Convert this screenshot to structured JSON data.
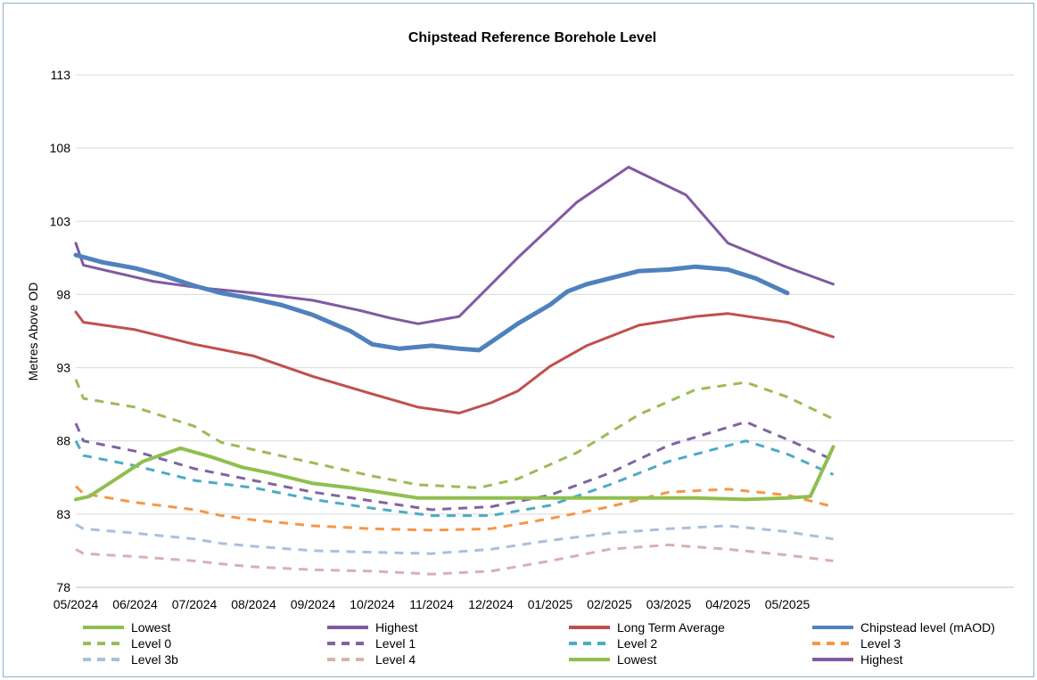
{
  "chart_data": {
    "type": "line",
    "title": "Chipstead Reference Borehole Level",
    "xlabel": "",
    "ylabel": "Metres Above OD",
    "ylim": [
      78,
      113
    ],
    "yticks": [
      78,
      83,
      88,
      93,
      98,
      103,
      108,
      113
    ],
    "xticks": [
      "05/2024",
      "06/2024",
      "07/2024",
      "08/2024",
      "09/2024",
      "10/2024",
      "11/2024",
      "12/2024",
      "01/2025",
      "02/2025",
      "03/2025",
      "04/2025",
      "05/2025"
    ],
    "grid": "horizontal",
    "legend": "bottom",
    "series": [
      {
        "name": "Lowest",
        "color": "#8fbf4f",
        "dash": "solid",
        "width": 4,
        "x": [
          "2024-05-01",
          "2024-05-08",
          "2024-06-05",
          "2024-06-24",
          "2024-07-10",
          "2024-07-26",
          "2024-08-10",
          "2024-09-01",
          "2024-09-20",
          "2024-10-10",
          "2024-10-25",
          "2024-11-15",
          "2024-12-15",
          "2025-01-15",
          "2025-02-15",
          "2025-03-15",
          "2025-04-10",
          "2025-05-01",
          "2025-05-13",
          "2025-05-25"
        ],
        "values": [
          84.0,
          84.2,
          86.6,
          87.5,
          86.9,
          86.2,
          85.8,
          85.1,
          84.8,
          84.4,
          84.1,
          84.1,
          84.1,
          84.1,
          84.1,
          84.1,
          84.0,
          84.1,
          84.2,
          87.6
        ]
      },
      {
        "name": "Highest",
        "color": "#7f5aa2",
        "dash": "solid",
        "width": 3,
        "x": [
          "2024-05-01",
          "2024-05-05",
          "2024-06-10",
          "2024-07-01",
          "2024-08-01",
          "2024-09-01",
          "2024-09-25",
          "2024-10-10",
          "2024-10-25",
          "2024-11-15",
          "2024-12-15",
          "2025-01-15",
          "2025-02-10",
          "2025-03-10",
          "2025-04-01",
          "2025-04-30",
          "2025-05-25"
        ],
        "values": [
          101.5,
          100.0,
          98.9,
          98.5,
          98.1,
          97.6,
          96.9,
          96.4,
          96.0,
          96.5,
          100.5,
          104.3,
          106.7,
          104.8,
          101.5,
          99.9,
          98.7
        ]
      },
      {
        "name": "Long Term Average",
        "color": "#c0504d",
        "dash": "solid",
        "width": 3,
        "x": [
          "2024-05-01",
          "2024-05-05",
          "2024-06-01",
          "2024-07-01",
          "2024-08-01",
          "2024-09-01",
          "2024-10-01",
          "2024-10-25",
          "2024-11-15",
          "2024-12-01",
          "2024-12-15",
          "2025-01-01",
          "2025-01-20",
          "2025-02-15",
          "2025-03-15",
          "2025-04-01",
          "2025-05-01",
          "2025-05-25"
        ],
        "values": [
          96.8,
          96.1,
          95.6,
          94.6,
          93.8,
          92.4,
          91.2,
          90.3,
          89.9,
          90.6,
          91.4,
          93.1,
          94.5,
          95.9,
          96.5,
          96.7,
          96.1,
          95.1
        ]
      },
      {
        "name": "Chipstead level (mAOD)",
        "color": "#4f81bd",
        "dash": "solid",
        "width": 5,
        "x": [
          "2024-05-01",
          "2024-05-15",
          "2024-06-01",
          "2024-06-15",
          "2024-07-01",
          "2024-07-15",
          "2024-08-01",
          "2024-08-15",
          "2024-09-01",
          "2024-09-20",
          "2024-10-01",
          "2024-10-15",
          "2024-11-01",
          "2024-11-15",
          "2024-11-25",
          "2024-12-05",
          "2024-12-15",
          "2025-01-01",
          "2025-01-10",
          "2025-01-20",
          "2025-02-01",
          "2025-02-15",
          "2025-03-01",
          "2025-03-15",
          "2025-04-01",
          "2025-04-15",
          "2025-05-01"
        ],
        "values": [
          100.7,
          100.2,
          99.8,
          99.3,
          98.6,
          98.1,
          97.7,
          97.3,
          96.6,
          95.5,
          94.6,
          94.3,
          94.5,
          94.3,
          94.2,
          95.1,
          96.0,
          97.3,
          98.2,
          98.7,
          99.1,
          99.6,
          99.7,
          99.9,
          99.7,
          99.1,
          98.1
        ]
      },
      {
        "name": "Level 0",
        "color": "#9bbb59",
        "dash": "dashed",
        "width": 3,
        "x": [
          "2024-05-01",
          "2024-05-05",
          "2024-06-01",
          "2024-07-01",
          "2024-07-15",
          "2024-08-01",
          "2024-09-01",
          "2024-10-01",
          "2024-10-25",
          "2024-11-25",
          "2024-12-15",
          "2025-01-15",
          "2025-02-15",
          "2025-03-15",
          "2025-04-10",
          "2025-05-01",
          "2025-05-25"
        ],
        "values": [
          92.2,
          90.9,
          90.3,
          89.0,
          87.9,
          87.4,
          86.5,
          85.6,
          85.0,
          84.8,
          85.4,
          87.2,
          89.8,
          91.5,
          92.0,
          91.0,
          89.5
        ]
      },
      {
        "name": "Level 1",
        "color": "#8064a2",
        "dash": "dashed",
        "width": 3,
        "x": [
          "2024-05-01",
          "2024-05-05",
          "2024-06-01",
          "2024-07-01",
          "2024-08-01",
          "2024-09-01",
          "2024-10-01",
          "2024-11-01",
          "2024-12-01",
          "2025-01-01",
          "2025-02-01",
          "2025-03-01",
          "2025-04-10",
          "2025-05-01",
          "2025-05-25"
        ],
        "values": [
          89.2,
          88.0,
          87.3,
          86.1,
          85.3,
          84.5,
          83.9,
          83.3,
          83.5,
          84.3,
          85.8,
          87.7,
          89.3,
          88.1,
          86.7
        ]
      },
      {
        "name": "Level 2",
        "color": "#4bacc6",
        "dash": "dashed",
        "width": 3,
        "x": [
          "2024-05-01",
          "2024-05-05",
          "2024-06-01",
          "2024-07-01",
          "2024-08-01",
          "2024-09-01",
          "2024-10-01",
          "2024-11-01",
          "2024-12-01",
          "2025-01-01",
          "2025-02-01",
          "2025-03-01",
          "2025-04-10",
          "2025-05-01",
          "2025-05-25"
        ],
        "values": [
          88.0,
          87.0,
          86.3,
          85.3,
          84.8,
          84.0,
          83.4,
          82.9,
          82.9,
          83.6,
          85.0,
          86.6,
          88.0,
          87.1,
          85.7
        ]
      },
      {
        "name": "Level 3",
        "color": "#f79646",
        "dash": "dashed",
        "width": 3,
        "x": [
          "2024-05-01",
          "2024-05-05",
          "2024-06-01",
          "2024-07-01",
          "2024-07-15",
          "2024-08-01",
          "2024-09-01",
          "2024-10-01",
          "2024-11-01",
          "2024-12-01",
          "2025-01-01",
          "2025-02-01",
          "2025-03-01",
          "2025-04-01",
          "2025-05-01",
          "2025-05-25"
        ],
        "values": [
          84.9,
          84.4,
          83.8,
          83.3,
          82.9,
          82.6,
          82.2,
          82.0,
          81.9,
          82.0,
          82.7,
          83.5,
          84.5,
          84.7,
          84.3,
          83.5
        ]
      },
      {
        "name": "Level 3b",
        "color": "#a9c0de",
        "dash": "dashed",
        "width": 3,
        "x": [
          "2024-05-01",
          "2024-05-05",
          "2024-06-01",
          "2024-07-01",
          "2024-07-15",
          "2024-08-01",
          "2024-09-01",
          "2024-10-01",
          "2024-11-01",
          "2024-12-01",
          "2025-01-01",
          "2025-02-01",
          "2025-03-01",
          "2025-04-01",
          "2025-05-01",
          "2025-05-25"
        ],
        "values": [
          82.3,
          82.0,
          81.7,
          81.3,
          81.0,
          80.8,
          80.5,
          80.4,
          80.3,
          80.6,
          81.2,
          81.7,
          82.0,
          82.2,
          81.8,
          81.3
        ]
      },
      {
        "name": "Level 4",
        "color": "#d9b1b0",
        "dash": "dashed",
        "width": 3,
        "x": [
          "2024-05-01",
          "2024-05-05",
          "2024-06-01",
          "2024-07-01",
          "2024-07-15",
          "2024-08-01",
          "2024-09-01",
          "2024-10-01",
          "2024-11-01",
          "2024-12-01",
          "2025-01-01",
          "2025-02-01",
          "2025-03-01",
          "2025-04-01",
          "2025-05-01",
          "2025-05-25"
        ],
        "values": [
          80.6,
          80.3,
          80.1,
          79.8,
          79.6,
          79.4,
          79.2,
          79.1,
          78.9,
          79.1,
          79.8,
          80.6,
          80.9,
          80.6,
          80.2,
          79.8
        ]
      }
    ],
    "legend_entries": [
      {
        "label": "Lowest",
        "color": "#8fbf4f",
        "dash": "solid"
      },
      {
        "label": "Highest",
        "color": "#7f5aa2",
        "dash": "solid"
      },
      {
        "label": "Long Term Average",
        "color": "#c0504d",
        "dash": "solid"
      },
      {
        "label": "Chipstead level (mAOD)",
        "color": "#4f81bd",
        "dash": "solid"
      },
      {
        "label": "Level 0",
        "color": "#9bbb59",
        "dash": "dashed"
      },
      {
        "label": "Level 1",
        "color": "#8064a2",
        "dash": "dashed"
      },
      {
        "label": "Level 2",
        "color": "#4bacc6",
        "dash": "dashed"
      },
      {
        "label": "Level 3",
        "color": "#f79646",
        "dash": "dashed"
      },
      {
        "label": "Level 3b",
        "color": "#a9c0de",
        "dash": "dashed"
      },
      {
        "label": "Level 4",
        "color": "#d9b1b0",
        "dash": "dashed"
      },
      {
        "label": "Lowest",
        "color": "#8fbf4f",
        "dash": "solid"
      },
      {
        "label": "Highest",
        "color": "#7f5aa2",
        "dash": "solid"
      }
    ]
  }
}
